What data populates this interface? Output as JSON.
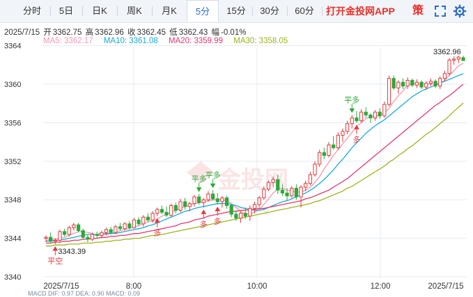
{
  "tabs": [
    {
      "label": "分时",
      "active": false
    },
    {
      "label": "5日",
      "active": false
    },
    {
      "label": "日K",
      "active": false
    },
    {
      "label": "周K",
      "active": false
    },
    {
      "label": "月K",
      "active": false
    },
    {
      "label": "5分",
      "active": true
    },
    {
      "label": "15分",
      "active": false
    },
    {
      "label": "30分",
      "active": false
    },
    {
      "label": "60分",
      "active": false
    }
  ],
  "promo_label": "打开金投网APP",
  "strategy_label": "策",
  "icons": {
    "fullscreen": "fullscreen-icon",
    "settings": "gear-icon"
  },
  "quote": {
    "date": "2025/7/15",
    "open_label": "开",
    "open": "3362.75",
    "high_label": "高",
    "high": "3362.96",
    "close_label": "收",
    "close": "3362.45",
    "low_label": "低",
    "low": "3362.43",
    "change_label": "幅",
    "change": "-0.01%"
  },
  "ma": {
    "ma5": {
      "label": "MA5: 3362.17",
      "color": "#f19ab0"
    },
    "ma10": {
      "label": "MA10: 3361.08",
      "color": "#1aa9d6"
    },
    "ma20": {
      "label": "MA20: 3359.99",
      "color": "#e03a6b"
    },
    "ma30": {
      "label": "MA30: 3358.05",
      "color": "#9cb41e"
    }
  },
  "footer_indicators": "MACD  DIF: 0.97    DEA: 0.90    MACD: 0.09",
  "colors": {
    "up": "#e03a3a",
    "down": "#2ea83a",
    "grid": "#e6ebf1",
    "axis_text": "#333333"
  },
  "chart_data": {
    "type": "candlestick",
    "yticks": [
      "3340",
      "3344",
      "3348",
      "3352",
      "3356",
      "3360",
      "3364"
    ],
    "ylim": [
      3340,
      3365
    ],
    "xticks": [
      "2025/7/15",
      "8:00",
      "10:00",
      "12:00",
      "2025/7/15"
    ],
    "max_label": "3362.96",
    "min_label": "3343.39",
    "candles": [
      [
        3344.0,
        3344.3,
        3343.6,
        3344.1
      ],
      [
        3344.1,
        3344.6,
        3343.5,
        3343.7
      ],
      [
        3343.7,
        3344.0,
        3343.39,
        3343.8
      ],
      [
        3343.8,
        3344.9,
        3343.6,
        3344.7
      ],
      [
        3344.7,
        3345.0,
        3344.2,
        3344.4
      ],
      [
        3344.4,
        3345.3,
        3344.2,
        3345.1
      ],
      [
        3345.1,
        3345.6,
        3344.8,
        3345.4
      ],
      [
        3345.4,
        3345.6,
        3344.6,
        3344.8
      ],
      [
        3344.8,
        3345.0,
        3343.9,
        3344.1
      ],
      [
        3344.1,
        3344.4,
        3343.6,
        3343.9
      ],
      [
        3343.9,
        3344.6,
        3343.7,
        3344.4
      ],
      [
        3344.4,
        3344.7,
        3344.0,
        3344.3
      ],
      [
        3344.3,
        3344.8,
        3344.0,
        3344.6
      ],
      [
        3344.6,
        3345.1,
        3344.3,
        3344.9
      ],
      [
        3344.9,
        3345.2,
        3344.4,
        3344.6
      ],
      [
        3344.6,
        3345.4,
        3344.5,
        3345.2
      ],
      [
        3345.2,
        3345.6,
        3344.8,
        3345.0
      ],
      [
        3345.0,
        3345.7,
        3344.8,
        3345.5
      ],
      [
        3345.5,
        3345.8,
        3344.9,
        3345.1
      ],
      [
        3345.1,
        3346.1,
        3345.0,
        3345.9
      ],
      [
        3345.9,
        3346.2,
        3345.3,
        3345.5
      ],
      [
        3345.5,
        3346.4,
        3345.2,
        3346.2
      ],
      [
        3346.2,
        3346.6,
        3345.7,
        3345.9
      ],
      [
        3345.9,
        3346.8,
        3345.6,
        3346.6
      ],
      [
        3346.6,
        3347.2,
        3346.3,
        3347.0
      ],
      [
        3347.0,
        3347.4,
        3346.5,
        3346.7
      ],
      [
        3346.7,
        3347.3,
        3346.2,
        3346.4
      ],
      [
        3346.4,
        3347.6,
        3346.2,
        3347.4
      ],
      [
        3347.4,
        3347.7,
        3346.6,
        3346.9
      ],
      [
        3346.9,
        3348.1,
        3346.7,
        3347.8
      ],
      [
        3347.8,
        3348.2,
        3347.0,
        3347.3
      ],
      [
        3347.3,
        3347.8,
        3346.8,
        3347.6
      ],
      [
        3347.6,
        3348.5,
        3347.3,
        3348.3
      ],
      [
        3348.3,
        3348.6,
        3347.5,
        3347.7
      ],
      [
        3347.7,
        3348.2,
        3347.2,
        3348.0
      ],
      [
        3348.0,
        3348.9,
        3347.8,
        3348.6
      ],
      [
        3348.6,
        3349.0,
        3347.9,
        3348.1
      ],
      [
        3348.1,
        3348.7,
        3347.5,
        3347.8
      ],
      [
        3347.8,
        3348.4,
        3347.2,
        3348.2
      ],
      [
        3348.2,
        3348.4,
        3347.1,
        3347.4
      ],
      [
        3347.4,
        3347.6,
        3346.2,
        3346.5
      ],
      [
        3346.5,
        3346.9,
        3345.8,
        3346.1
      ],
      [
        3346.1,
        3346.8,
        3345.6,
        3346.6
      ],
      [
        3346.6,
        3347.2,
        3346.0,
        3346.3
      ],
      [
        3346.3,
        3347.4,
        3345.8,
        3347.1
      ],
      [
        3347.1,
        3347.8,
        3346.6,
        3347.5
      ],
      [
        3347.5,
        3348.4,
        3347.2,
        3348.2
      ],
      [
        3348.2,
        3349.4,
        3348.0,
        3349.1
      ],
      [
        3349.1,
        3350.0,
        3348.9,
        3349.8
      ],
      [
        3349.8,
        3350.4,
        3349.3,
        3350.1
      ],
      [
        3350.1,
        3350.6,
        3348.6,
        3349.0
      ],
      [
        3349.0,
        3349.6,
        3348.4,
        3348.7
      ],
      [
        3348.7,
        3349.2,
        3347.9,
        3348.4
      ],
      [
        3348.4,
        3349.4,
        3348.2,
        3349.2
      ],
      [
        3349.2,
        3349.6,
        3348.0,
        3348.3
      ],
      [
        3348.3,
        3349.5,
        3347.2,
        3349.3
      ],
      [
        3349.3,
        3350.0,
        3348.9,
        3349.7
      ],
      [
        3349.7,
        3350.9,
        3349.5,
        3350.6
      ],
      [
        3350.6,
        3352.0,
        3350.4,
        3351.7
      ],
      [
        3351.7,
        3353.2,
        3351.4,
        3352.9
      ],
      [
        3352.9,
        3353.4,
        3352.2,
        3352.6
      ],
      [
        3352.6,
        3354.0,
        3352.4,
        3353.7
      ],
      [
        3353.7,
        3354.6,
        3353.2,
        3353.4
      ],
      [
        3353.4,
        3355.0,
        3353.2,
        3354.7
      ],
      [
        3354.7,
        3355.4,
        3354.0,
        3355.1
      ],
      [
        3355.1,
        3356.2,
        3354.8,
        3355.9
      ],
      [
        3355.9,
        3356.8,
        3355.4,
        3356.5
      ],
      [
        3356.5,
        3357.2,
        3356.0,
        3356.2
      ],
      [
        3356.2,
        3357.4,
        3356.0,
        3357.1
      ],
      [
        3357.1,
        3357.6,
        3356.5,
        3356.8
      ],
      [
        3356.8,
        3357.0,
        3356.0,
        3356.5
      ],
      [
        3356.5,
        3357.3,
        3356.2,
        3357.1
      ],
      [
        3357.1,
        3357.5,
        3356.4,
        3356.7
      ],
      [
        3356.7,
        3358.2,
        3356.5,
        3357.9
      ],
      [
        3357.9,
        3360.9,
        3357.7,
        3360.6
      ],
      [
        3360.6,
        3360.9,
        3359.4,
        3359.6
      ],
      [
        3359.6,
        3360.4,
        3359.0,
        3360.2
      ],
      [
        3360.2,
        3360.6,
        3359.5,
        3359.8
      ],
      [
        3359.8,
        3360.7,
        3359.5,
        3360.4
      ],
      [
        3360.4,
        3360.6,
        3359.7,
        3359.9
      ],
      [
        3359.9,
        3360.5,
        3359.6,
        3360.2
      ],
      [
        3360.2,
        3360.4,
        3359.5,
        3359.7
      ],
      [
        3359.7,
        3360.3,
        3359.4,
        3360.1
      ],
      [
        3360.1,
        3360.6,
        3359.8,
        3360.3
      ],
      [
        3360.3,
        3360.5,
        3359.6,
        3359.8
      ],
      [
        3359.8,
        3360.8,
        3359.5,
        3360.6
      ],
      [
        3360.6,
        3361.4,
        3360.3,
        3361.1
      ],
      [
        3361.1,
        3362.7,
        3360.9,
        3362.5
      ],
      [
        3362.5,
        3362.9,
        3362.0,
        3362.6
      ],
      [
        3362.6,
        3362.96,
        3362.2,
        3362.8
      ],
      [
        3362.75,
        3362.96,
        3362.43,
        3362.45
      ]
    ],
    "ma_series": {
      "MA5": [
        3343.8,
        3343.9,
        3343.9,
        3344.0,
        3344.1,
        3344.3,
        3344.5,
        3344.7,
        3344.7,
        3344.6,
        3344.5,
        3344.3,
        3344.3,
        3344.4,
        3344.5,
        3344.6,
        3344.8,
        3344.9,
        3345.0,
        3345.2,
        3345.3,
        3345.5,
        3345.7,
        3345.8,
        3346.0,
        3346.3,
        3346.5,
        3346.7,
        3346.9,
        3347.1,
        3347.3,
        3347.4,
        3347.6,
        3347.7,
        3347.8,
        3347.9,
        3348.0,
        3348.0,
        3348.0,
        3347.9,
        3347.6,
        3347.2,
        3346.8,
        3346.5,
        3346.5,
        3346.7,
        3347.0,
        3347.5,
        3348.1,
        3348.7,
        3349.1,
        3349.2,
        3349.0,
        3348.9,
        3348.8,
        3348.8,
        3349.0,
        3349.3,
        3349.8,
        3350.4,
        3351.2,
        3351.9,
        3352.6,
        3353.2,
        3353.8,
        3354.4,
        3355.0,
        3355.6,
        3356.0,
        3356.4,
        3356.6,
        3356.7,
        3356.8,
        3357.0,
        3357.5,
        3358.2,
        3358.8,
        3359.3,
        3359.9,
        3360.1,
        3360.0,
        3360.0,
        3360.0,
        3360.0,
        3360.0,
        3360.1,
        3360.4,
        3360.9,
        3361.4,
        3361.9,
        3362.17
      ],
      "MA10": [
        3343.7,
        3343.7,
        3343.8,
        3343.8,
        3343.9,
        3344.0,
        3344.1,
        3344.2,
        3344.3,
        3344.4,
        3344.4,
        3344.4,
        3344.5,
        3344.5,
        3344.5,
        3344.5,
        3344.6,
        3344.7,
        3344.8,
        3344.9,
        3345.0,
        3345.1,
        3345.3,
        3345.4,
        3345.6,
        3345.8,
        3346.0,
        3346.2,
        3346.4,
        3346.6,
        3346.8,
        3346.9,
        3347.1,
        3347.2,
        3347.3,
        3347.4,
        3347.5,
        3347.6,
        3347.6,
        3347.6,
        3347.5,
        3347.4,
        3347.2,
        3347.1,
        3347.0,
        3346.9,
        3346.9,
        3347.0,
        3347.2,
        3347.4,
        3347.6,
        3347.8,
        3347.9,
        3348.1,
        3348.3,
        3348.5,
        3348.7,
        3349.0,
        3349.3,
        3349.7,
        3350.1,
        3350.6,
        3351.1,
        3351.7,
        3352.2,
        3352.8,
        3353.4,
        3353.9,
        3354.4,
        3354.9,
        3355.3,
        3355.7,
        3356.0,
        3356.3,
        3356.7,
        3357.1,
        3357.5,
        3357.9,
        3358.3,
        3358.7,
        3359.0,
        3359.3,
        3359.5,
        3359.7,
        3359.9,
        3360.1,
        3360.3,
        3360.5,
        3360.7,
        3360.9,
        3361.08
      ],
      "MA20": [
        3343.5,
        3343.5,
        3343.6,
        3343.6,
        3343.7,
        3343.7,
        3343.8,
        3343.8,
        3343.9,
        3343.9,
        3344.0,
        3344.0,
        3344.1,
        3344.1,
        3344.2,
        3344.2,
        3344.3,
        3344.3,
        3344.4,
        3344.5,
        3344.5,
        3344.6,
        3344.7,
        3344.8,
        3344.9,
        3345.0,
        3345.1,
        3345.2,
        3345.3,
        3345.5,
        3345.6,
        3345.7,
        3345.9,
        3346.0,
        3346.1,
        3346.3,
        3346.4,
        3346.5,
        3346.6,
        3346.7,
        3346.8,
        3346.8,
        3346.9,
        3346.9,
        3347.0,
        3347.0,
        3347.1,
        3347.1,
        3347.2,
        3347.3,
        3347.4,
        3347.5,
        3347.6,
        3347.7,
        3347.8,
        3347.9,
        3348.1,
        3348.2,
        3348.4,
        3348.6,
        3348.8,
        3349.0,
        3349.3,
        3349.6,
        3349.9,
        3350.2,
        3350.6,
        3351.0,
        3351.4,
        3351.8,
        3352.2,
        3352.6,
        3353.0,
        3353.4,
        3353.8,
        3354.2,
        3354.6,
        3355.0,
        3355.4,
        3355.8,
        3356.2,
        3356.6,
        3357.0,
        3357.4,
        3357.8,
        3358.1,
        3358.5,
        3358.8,
        3359.2,
        3359.6,
        3359.99
      ],
      "MA30": [
        3343.2,
        3343.2,
        3343.3,
        3343.3,
        3343.3,
        3343.4,
        3343.4,
        3343.4,
        3343.5,
        3343.5,
        3343.5,
        3343.6,
        3343.6,
        3343.7,
        3343.7,
        3343.8,
        3343.8,
        3343.9,
        3343.9,
        3344.0,
        3344.0,
        3344.1,
        3344.2,
        3344.3,
        3344.3,
        3344.4,
        3344.5,
        3344.6,
        3344.7,
        3344.8,
        3344.9,
        3345.0,
        3345.1,
        3345.2,
        3345.3,
        3345.4,
        3345.5,
        3345.6,
        3345.7,
        3345.8,
        3345.9,
        3346.0,
        3346.1,
        3346.2,
        3346.3,
        3346.4,
        3346.5,
        3346.6,
        3346.7,
        3346.8,
        3346.9,
        3347.0,
        3347.1,
        3347.2,
        3347.3,
        3347.4,
        3347.5,
        3347.6,
        3347.8,
        3347.9,
        3348.1,
        3348.3,
        3348.5,
        3348.7,
        3348.9,
        3349.2,
        3349.4,
        3349.7,
        3350.0,
        3350.3,
        3350.6,
        3350.9,
        3351.2,
        3351.5,
        3351.9,
        3352.2,
        3352.6,
        3352.9,
        3353.3,
        3353.6,
        3354.0,
        3354.4,
        3354.8,
        3355.1,
        3355.5,
        3355.9,
        3356.3,
        3356.7,
        3357.2,
        3357.6,
        3358.05
      ]
    },
    "signals": [
      {
        "idx": 2,
        "text": "平空",
        "dir": "up",
        "color": "#e03a3a"
      },
      {
        "idx": 24,
        "text": "多",
        "dir": "up",
        "color": "#e03a3a"
      },
      {
        "idx": 34,
        "text": "多",
        "dir": "up",
        "color": "#e03a3a"
      },
      {
        "idx": 37,
        "text": "多",
        "dir": "up",
        "color": "#e03a3a"
      },
      {
        "idx": 33,
        "text": "平多",
        "dir": "down",
        "color": "#2ea83a"
      },
      {
        "idx": 36,
        "text": "平多",
        "dir": "down",
        "color": "#2ea83a"
      },
      {
        "idx": 67,
        "text": "多",
        "dir": "up",
        "color": "#e03a3a"
      },
      {
        "idx": 66,
        "text": "平多",
        "dir": "down",
        "color": "#2ea83a"
      }
    ]
  }
}
